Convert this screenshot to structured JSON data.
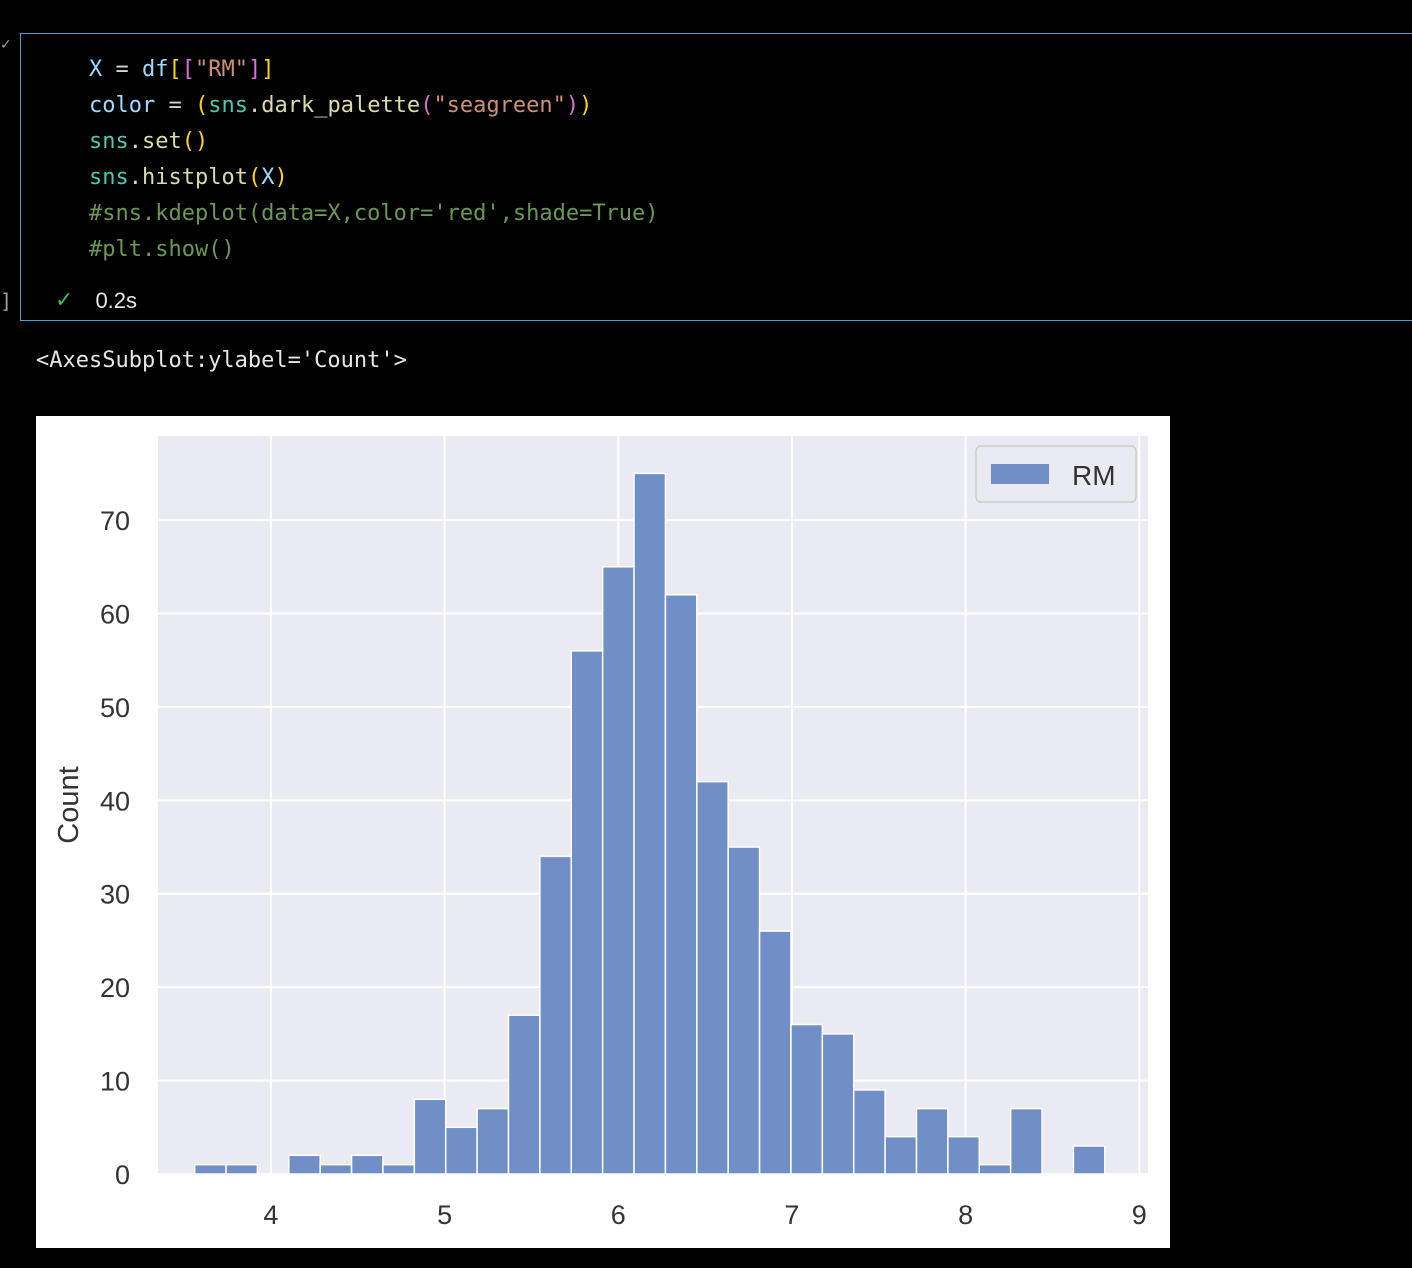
{
  "cell": {
    "code_lines": [
      [
        [
          "t-var",
          "X"
        ],
        [
          "t-op",
          " = "
        ],
        [
          "t-var",
          "df"
        ],
        [
          "t-br1",
          "["
        ],
        [
          "t-br2",
          "["
        ],
        [
          "t-str",
          "\"RM\""
        ],
        [
          "t-br2",
          "]"
        ],
        [
          "t-br1",
          "]"
        ]
      ],
      [
        [
          "t-var",
          "color"
        ],
        [
          "t-op",
          " = "
        ],
        [
          "t-br1",
          "("
        ],
        [
          "t-mod",
          "sns"
        ],
        [
          "t-op",
          "."
        ],
        [
          "t-fn",
          "dark_palette"
        ],
        [
          "t-br2",
          "("
        ],
        [
          "t-str",
          "\"seagreen\""
        ],
        [
          "t-br2",
          ")"
        ],
        [
          "t-br1",
          ")"
        ]
      ],
      [
        [
          "t-mod",
          "sns"
        ],
        [
          "t-op",
          "."
        ],
        [
          "t-fn",
          "set"
        ],
        [
          "t-br1",
          "()"
        ]
      ],
      [
        [
          "t-mod",
          "sns"
        ],
        [
          "t-op",
          "."
        ],
        [
          "t-fn",
          "histplot"
        ],
        [
          "t-br1",
          "("
        ],
        [
          "t-var",
          "X"
        ],
        [
          "t-br1",
          ")"
        ]
      ],
      [
        [
          "t-com",
          "#sns.kdeplot(data=X,color='red',shade=True)"
        ]
      ],
      [
        [
          "t-com",
          "#plt.show()"
        ]
      ]
    ],
    "check_icon": "✓",
    "elapsed": "0.2s",
    "collapse_icon": "✓",
    "bracket": "]"
  },
  "output": {
    "text": "<AxesSubplot:ylabel='Count'>"
  },
  "colors": {
    "bar": "#6f8fc6",
    "plot_bg": "#eaeaf2",
    "grid": "#ffffff",
    "tick_text": "#333333"
  },
  "chart_data": {
    "type": "bar",
    "title": "",
    "xlabel": "",
    "ylabel": "Count",
    "xlim": [
      3.35,
      9.05
    ],
    "ylim": [
      0,
      79
    ],
    "xticks": [
      4,
      5,
      6,
      7,
      8,
      9
    ],
    "yticks": [
      0,
      10,
      20,
      30,
      40,
      50,
      60,
      70
    ],
    "grid": true,
    "legend": {
      "placement": "top-right",
      "entries": [
        "RM"
      ]
    },
    "series": [
      {
        "name": "RM",
        "bin_start": 3.561,
        "bin_width": 0.1807,
        "values": [
          1,
          1,
          0,
          2,
          1,
          2,
          1,
          8,
          5,
          7,
          17,
          34,
          56,
          65,
          75,
          62,
          42,
          35,
          26,
          16,
          15,
          9,
          4,
          7,
          4,
          1,
          7,
          0,
          3
        ]
      }
    ]
  }
}
